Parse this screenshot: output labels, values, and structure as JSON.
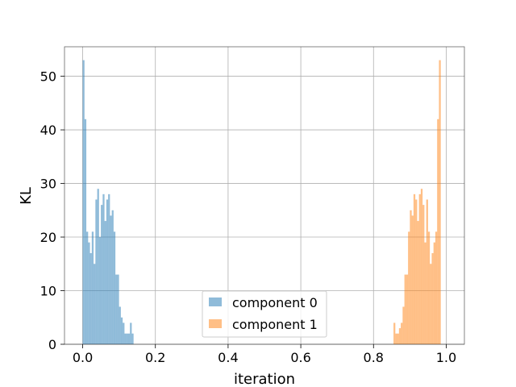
{
  "chart_data": {
    "type": "histogram",
    "xlabel": "iteration",
    "ylabel": "KL",
    "xlim": [
      -0.05,
      1.05
    ],
    "ylim": [
      0,
      55.5
    ],
    "xticks": [
      0.0,
      0.2,
      0.4,
      0.6,
      0.8,
      1.0
    ],
    "xtick_labels": [
      "0.0",
      "0.2",
      "0.4",
      "0.6",
      "0.8",
      "1.0"
    ],
    "yticks": [
      0,
      10,
      20,
      30,
      40,
      50
    ],
    "ytick_labels": [
      "0",
      "10",
      "20",
      "30",
      "40",
      "50"
    ],
    "grid": true,
    "legend_position": "lower center",
    "series": [
      {
        "name": "component 0",
        "color": "#1f77b4",
        "opacity": 0.5,
        "bin_width": 0.005,
        "bins_start": [
          0.0,
          0.005,
          0.01,
          0.015,
          0.02,
          0.025,
          0.03,
          0.035,
          0.04,
          0.045,
          0.05,
          0.055,
          0.06,
          0.065,
          0.07,
          0.075,
          0.08,
          0.085,
          0.09,
          0.095,
          0.1,
          0.105,
          0.11,
          0.115,
          0.12,
          0.125,
          0.13,
          0.135,
          0.14
        ],
        "counts": [
          53,
          42,
          21,
          19,
          17,
          21,
          15,
          27,
          29,
          20,
          26,
          28,
          23,
          27,
          28,
          24,
          25,
          21,
          13,
          13,
          7,
          5,
          4,
          2,
          2,
          2,
          4,
          2,
          0
        ]
      },
      {
        "name": "component 1",
        "color": "#ff7f0e",
        "opacity": 0.5,
        "bin_width": 0.005,
        "bins_start": [
          0.855,
          0.86,
          0.865,
          0.87,
          0.875,
          0.88,
          0.885,
          0.89,
          0.895,
          0.9,
          0.905,
          0.91,
          0.915,
          0.92,
          0.925,
          0.93,
          0.935,
          0.94,
          0.945,
          0.95,
          0.955,
          0.96,
          0.965,
          0.97,
          0.975,
          0.98,
          0.985,
          0.99,
          0.995
        ],
        "counts": [
          4,
          2,
          2,
          3,
          4,
          7,
          13,
          13,
          21,
          25,
          24,
          28,
          27,
          23,
          28,
          29,
          26,
          19,
          27,
          21,
          15,
          17,
          19,
          21,
          42,
          53,
          0,
          0,
          0
        ]
      }
    ]
  }
}
